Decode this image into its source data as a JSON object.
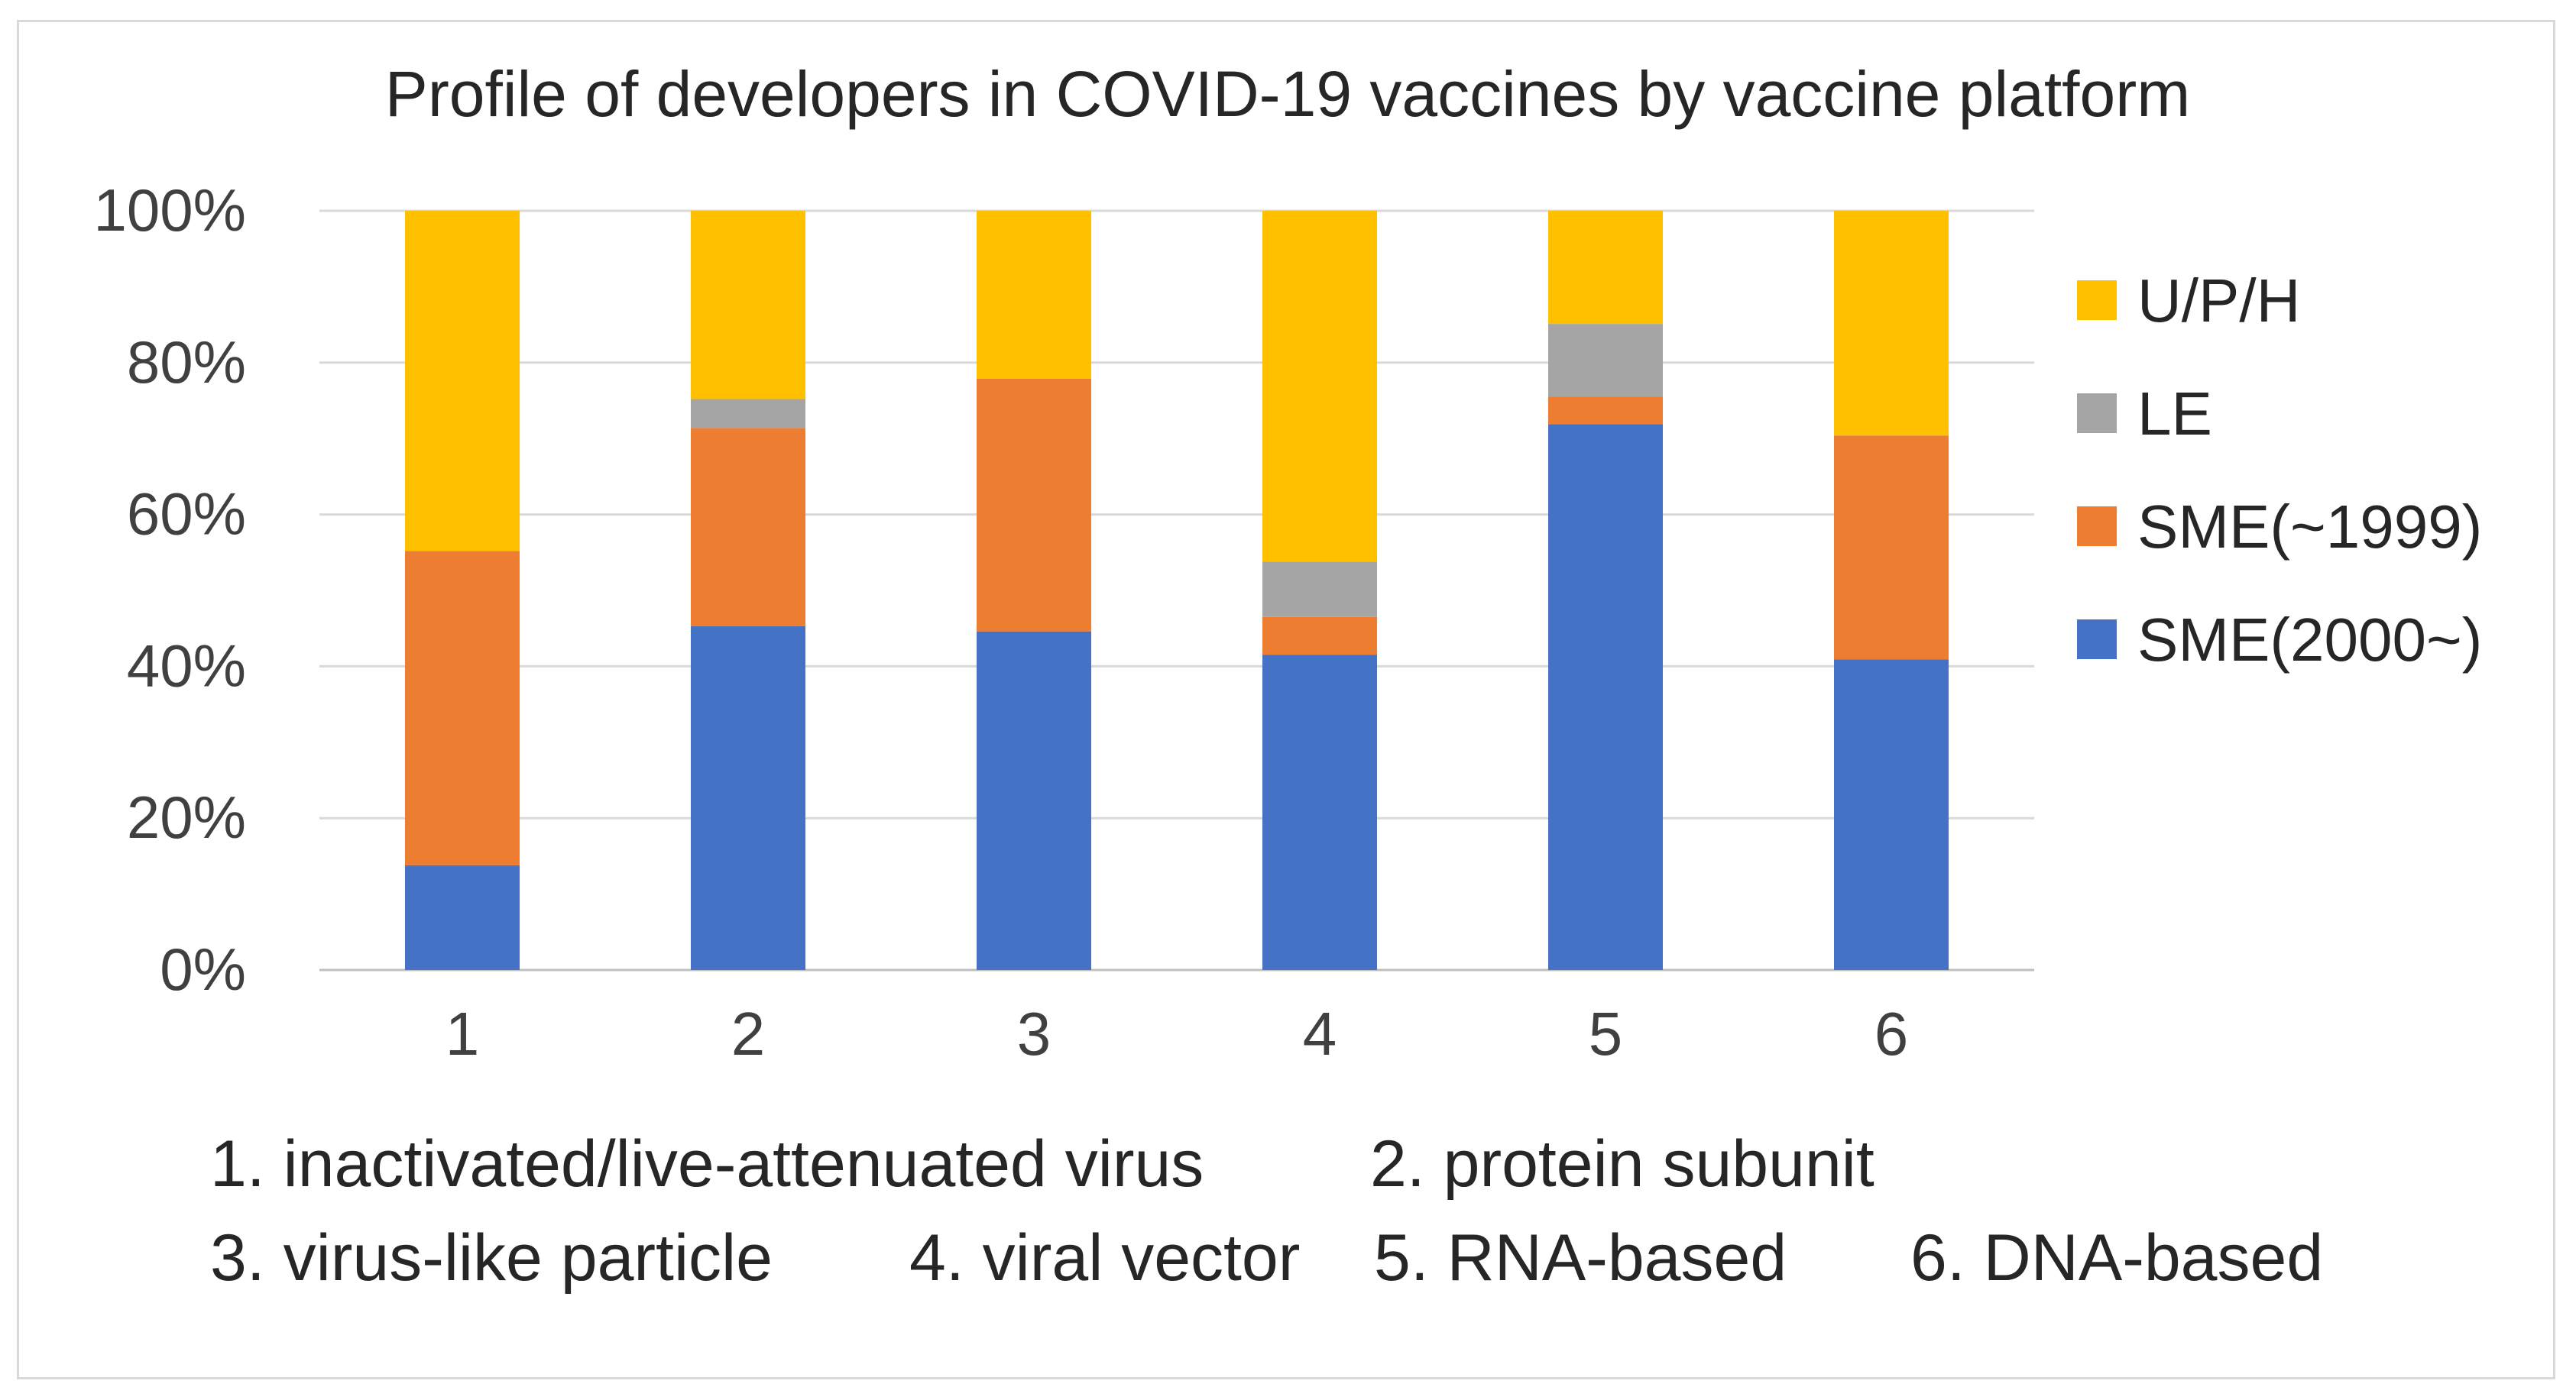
{
  "chart_data": {
    "type": "bar",
    "stacked": true,
    "normalized": true,
    "title": "Profile of developers in COVID-19 vaccines by vaccine platform",
    "categories": [
      "1",
      "2",
      "3",
      "4",
      "5",
      "6"
    ],
    "y_ticks": [
      "0%",
      "20%",
      "40%",
      "60%",
      "80%",
      "100%"
    ],
    "ylim": [
      0,
      100
    ],
    "grid": true,
    "legend_position": "right",
    "series": [
      {
        "name": "SME(2000~)",
        "color": "#4472C4",
        "values": [
          13.8,
          45.3,
          44.6,
          41.5,
          71.9,
          40.9
        ]
      },
      {
        "name": "SME(~1999)",
        "color": "#ED7D31",
        "values": [
          41.4,
          26.1,
          33.3,
          5.0,
          3.6,
          29.5
        ]
      },
      {
        "name": "LE",
        "color": "#A5A5A5",
        "values": [
          0.0,
          3.8,
          0.0,
          7.3,
          9.6,
          0.0
        ]
      },
      {
        "name": "U/P/H",
        "color": "#FFC000",
        "values": [
          44.8,
          24.8,
          22.1,
          46.2,
          14.9,
          29.6
        ]
      }
    ],
    "footnote_lines": [
      [
        "1. inactivated/live-attenuated virus",
        "2. protein subunit"
      ],
      [
        "3. virus-like particle",
        "4. viral vector",
        "5. RNA-based",
        "6. DNA-based"
      ]
    ]
  }
}
